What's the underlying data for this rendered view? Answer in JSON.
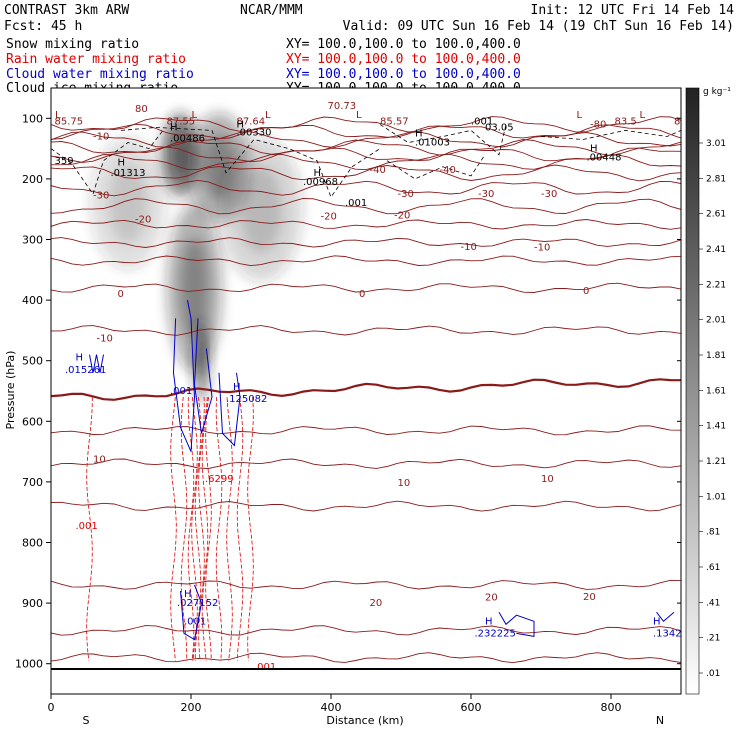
{
  "header": {
    "model": "CONTRAST  3km ARW",
    "center": "NCAR/MMM",
    "init": "Init: 12 UTC Fri 14 Feb 14",
    "fcst": "Fcst:    45 h",
    "valid": "Valid: 09 UTC Sun 16 Feb 14 (19 ChT Sun 16 Feb 14)",
    "legend": [
      {
        "label": "Snow mixing ratio",
        "xy": "XY=  100.0,100.0 to 100.0,400.0",
        "color": "#000000"
      },
      {
        "label": "Rain water mixing ratio",
        "xy": "XY=  100.0,100.0 to 100.0,400.0",
        "color": "#e00000"
      },
      {
        "label": "Cloud water mixing ratio",
        "xy": "XY=  100.0,100.0 to 100.0,400.0",
        "color": "#0000cc"
      },
      {
        "label": "Cloud ice mixing ratio",
        "xy": "XY=  100.0,100.0 to 100.0,400.0",
        "color": "#000000"
      }
    ]
  },
  "chart_data": {
    "type": "cross-section",
    "xlabel": "Distance (km)",
    "ylabel": "Pressure (hPa)",
    "xlim": [
      0,
      900
    ],
    "ylim": [
      1050,
      50
    ],
    "x_ticks": [
      0,
      200,
      400,
      600,
      800
    ],
    "y_ticks": [
      100,
      200,
      300,
      400,
      500,
      600,
      700,
      800,
      900,
      1000
    ],
    "end_labels": {
      "left": "S",
      "right": "N"
    },
    "colorbar": {
      "unit": "g kg⁻¹",
      "labels": [
        "3.01",
        "2.81",
        "2.61",
        "2.41",
        "2.21",
        "2.01",
        "1.81",
        "1.61",
        "1.41",
        "1.21",
        "1.01",
        ".81",
        ".61",
        ".41",
        ".21",
        ".01"
      ],
      "min": 0.01,
      "max": 3.01
    },
    "snow_field": [
      {
        "x": 185,
        "p": 160,
        "intensity": 0.85,
        "sx": 28,
        "sp": 70
      },
      {
        "x": 240,
        "p": 180,
        "intensity": 0.55,
        "sx": 45,
        "sp": 90
      },
      {
        "x": 110,
        "p": 240,
        "intensity": 0.25,
        "sx": 55,
        "sp": 110
      },
      {
        "x": 300,
        "p": 250,
        "intensity": 0.3,
        "sx": 60,
        "sp": 120
      },
      {
        "x": 205,
        "p": 380,
        "intensity": 0.55,
        "sx": 40,
        "sp": 140
      },
      {
        "x": 215,
        "p": 500,
        "intensity": 0.7,
        "sx": 12,
        "sp": 70
      }
    ],
    "temperature_contours": [
      {
        "value": -80,
        "p0": 110,
        "label": "-80"
      },
      {
        "value": -70,
        "p0": 122,
        "label": ""
      },
      {
        "value": -60,
        "p0": 135,
        "label": ""
      },
      {
        "value": -55,
        "p0": 148,
        "label": ""
      },
      {
        "value": -50,
        "p0": 160,
        "label": ""
      },
      {
        "value": -45,
        "p0": 172,
        "label": ""
      },
      {
        "value": -40,
        "p0": 190,
        "label": "-40"
      },
      {
        "value": -35,
        "p0": 215,
        "label": ""
      },
      {
        "value": -30,
        "p0": 245,
        "label": "-30"
      },
      {
        "value": -25,
        "p0": 275,
        "label": ""
      },
      {
        "value": -20,
        "p0": 305,
        "label": "-20"
      },
      {
        "value": -15,
        "p0": 335,
        "label": ""
      },
      {
        "value": -10,
        "p0": 380,
        "label": "-10"
      },
      {
        "value": -5,
        "p0": 450,
        "label": ""
      },
      {
        "value": 0,
        "p0": 560,
        "label": "0"
      },
      {
        "value": 5,
        "p0": 615,
        "label": ""
      },
      {
        "value": 10,
        "p0": 670,
        "label": "10"
      },
      {
        "value": 15,
        "p0": 740,
        "label": ""
      },
      {
        "value": 20,
        "p0": 870,
        "label": "20"
      },
      {
        "value": 25,
        "p0": 945,
        "label": ""
      },
      {
        "value": 30,
        "p0": 990,
        "label": ""
      }
    ],
    "temp_labels": [
      {
        "x": 95,
        "p": 395,
        "text": "0"
      },
      {
        "x": 440,
        "p": 395,
        "text": "0"
      },
      {
        "x": 760,
        "p": 390,
        "text": "0"
      },
      {
        "x": 60,
        "p": 135,
        "text": "-10"
      },
      {
        "x": 60,
        "p": 232,
        "text": "-30"
      },
      {
        "x": 120,
        "p": 272,
        "text": "-20"
      },
      {
        "x": 130,
        "p": 272,
        "text": ""
      },
      {
        "x": 65,
        "p": 468,
        "text": "-10"
      },
      {
        "x": 40,
        "p": 420,
        "text": ""
      },
      {
        "x": 60,
        "p": 668,
        "text": "10"
      }
    ],
    "pressure_value_labels": [
      {
        "x": 5,
        "p": 110,
        "text": "85.75"
      },
      {
        "x": 165,
        "p": 110,
        "text": "87.55"
      },
      {
        "x": 265,
        "p": 110,
        "text": "87.64"
      },
      {
        "x": 470,
        "p": 110,
        "text": "85.57"
      },
      {
        "x": 805,
        "p": 110,
        "text": "83.5"
      },
      {
        "x": 890,
        "p": 110,
        "text": "84.58"
      },
      {
        "x": 395,
        "p": 85,
        "text": "70.73"
      }
    ],
    "minor_labels": [
      {
        "x": 120,
        "p": 90,
        "text": "80"
      },
      {
        "x": 455,
        "p": 190,
        "text": "-40"
      },
      {
        "x": 555,
        "p": 190,
        "text": "-40"
      },
      {
        "x": 770,
        "p": 115,
        "text": "-80"
      },
      {
        "x": 495,
        "p": 230,
        "text": "-30"
      },
      {
        "x": 610,
        "p": 230,
        "text": "-30"
      },
      {
        "x": 700,
        "p": 230,
        "text": "-30"
      },
      {
        "x": 385,
        "p": 267,
        "text": "-20"
      },
      {
        "x": 490,
        "p": 265,
        "text": "-20"
      },
      {
        "x": 585,
        "p": 317,
        "text": "-10"
      },
      {
        "x": 690,
        "p": 318,
        "text": "-10"
      },
      {
        "x": 495,
        "p": 707,
        "text": "10"
      },
      {
        "x": 700,
        "p": 700,
        "text": "10"
      },
      {
        "x": 455,
        "p": 905,
        "text": "20"
      },
      {
        "x": 620,
        "p": 896,
        "text": "20"
      },
      {
        "x": 760,
        "p": 895,
        "text": "20"
      }
    ],
    "L_markers": [
      {
        "x": 0,
        "p": 90,
        "text": "L"
      },
      {
        "x": 195,
        "p": 90,
        "text": "L"
      },
      {
        "x": 300,
        "p": 90,
        "text": "L"
      },
      {
        "x": 430,
        "p": 90,
        "text": "L"
      },
      {
        "x": 745,
        "p": 90,
        "text": "L"
      },
      {
        "x": 835,
        "p": 90,
        "text": "L"
      }
    ],
    "ice_contour_labels": [
      {
        "x": 170,
        "p": 120,
        "text": "H",
        "color": "black"
      },
      {
        "x": 170,
        "p": 138,
        "text": ".00486",
        "color": "black"
      },
      {
        "x": 265,
        "p": 115,
        "text": "H",
        "color": "black"
      },
      {
        "x": 265,
        "p": 128,
        "text": ".00330",
        "color": "black"
      },
      {
        "x": 95,
        "p": 178,
        "text": "H",
        "color": "black"
      },
      {
        "x": 85,
        "p": 195,
        "text": ".01313",
        "color": "black"
      },
      {
        "x": 5,
        "p": 175,
        "text": "359",
        "color": "black"
      },
      {
        "x": 375,
        "p": 195,
        "text": "H",
        "color": "black"
      },
      {
        "x": 360,
        "p": 210,
        "text": ".00968",
        "color": "black"
      },
      {
        "x": 520,
        "p": 130,
        "text": "H",
        "color": "black"
      },
      {
        "x": 520,
        "p": 145,
        "text": ".01003",
        "color": "black"
      },
      {
        "x": 770,
        "p": 155,
        "text": "H",
        "color": "black"
      },
      {
        "x": 765,
        "p": 170,
        "text": ".00448",
        "color": "black"
      },
      {
        "x": 600,
        "p": 110,
        "text": ".001",
        "color": "black"
      },
      {
        "x": 620,
        "p": 120,
        "text": "03.05",
        "color": "black"
      },
      {
        "x": 420,
        "p": 245,
        "text": ".001",
        "color": "black"
      }
    ],
    "cloud_labels": [
      {
        "x": 35,
        "p": 500,
        "text": "H",
        "color": "blue"
      },
      {
        "x": 20,
        "p": 520,
        "text": ".015261",
        "color": "blue"
      },
      {
        "x": 170,
        "p": 555,
        "text": ".001",
        "color": "blue"
      },
      {
        "x": 260,
        "p": 548,
        "text": "H",
        "color": "blue"
      },
      {
        "x": 250,
        "p": 568,
        "text": ".125082",
        "color": "blue"
      },
      {
        "x": 190,
        "p": 890,
        "text": "H",
        "color": "blue"
      },
      {
        "x": 180,
        "p": 905,
        "text": ".027152",
        "color": "blue"
      },
      {
        "x": 190,
        "p": 935,
        "text": ".001",
        "color": "blue"
      },
      {
        "x": 620,
        "p": 935,
        "text": "H",
        "color": "blue"
      },
      {
        "x": 605,
        "p": 955,
        "text": ".232225",
        "color": "blue"
      },
      {
        "x": 860,
        "p": 935,
        "text": "H",
        "color": "blue"
      },
      {
        "x": 860,
        "p": 955,
        "text": ".1342",
        "color": "blue"
      }
    ],
    "rain_labels": [
      {
        "x": 220,
        "p": 700,
        "text": ".6299",
        "color": "red"
      },
      {
        "x": 35,
        "p": 778,
        "text": ".001",
        "color": "red"
      },
      {
        "x": 290,
        "p": 1010,
        "text": ".001",
        "color": "red"
      }
    ]
  }
}
